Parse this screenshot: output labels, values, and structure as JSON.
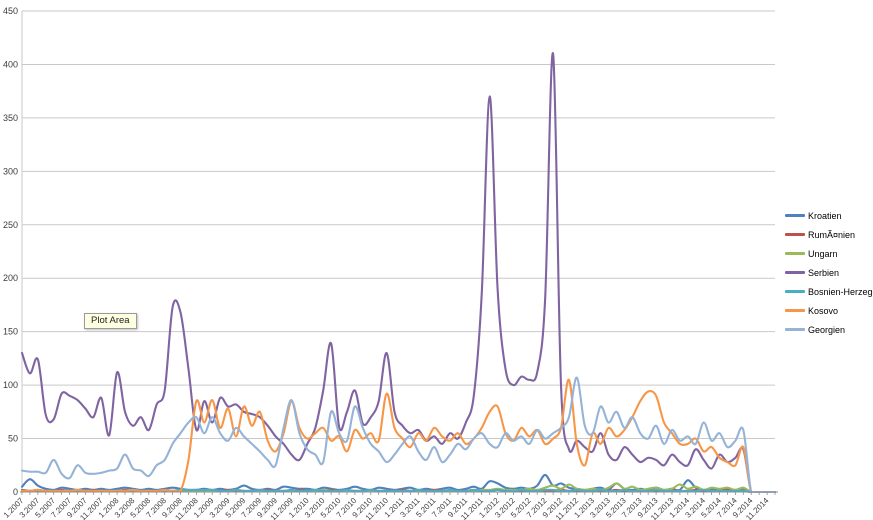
{
  "plot_area_tooltip": "Plot Area",
  "style": {
    "background": "#ffffff",
    "grid_color": "#c9c9c9",
    "axis_color": "#8e8e8e",
    "label_color": "#3c3c3c"
  },
  "chart_data": {
    "type": "line",
    "title": "",
    "xlabel": "",
    "ylabel": "",
    "ylim": [
      0,
      450
    ],
    "grid": true,
    "smooth_lines": true,
    "legend_position": "right",
    "x_unit": "month.year (monthly points 1.2007 - 12.2014, labels every 2 months)",
    "y_ticks": [
      0,
      50,
      100,
      150,
      200,
      250,
      300,
      350,
      400,
      450
    ],
    "x_tick_labels": [
      "1.2007",
      "3.2007",
      "5.2007",
      "7.2007",
      "9.2007",
      "11.2007",
      "1.2008",
      "3.2008",
      "5.2008",
      "7.2008",
      "9.2008",
      "11.2008",
      "1.2009",
      "3.2009",
      "5.2009",
      "7.2009",
      "9.2009",
      "11.2009",
      "1.2010",
      "3.2010",
      "5.2010",
      "7.2010",
      "9.2010",
      "11.2010",
      "1.2011",
      "3.2011",
      "5.2011",
      "7.2011",
      "9.2011",
      "11.2011",
      "1.2012",
      "3.2012",
      "5.2012",
      "7.2012",
      "9.2012",
      "11.2012",
      "1.2013",
      "3.2013",
      "5.2013",
      "7.2013",
      "9.2013",
      "11.2013",
      "1.2014",
      "3.2014",
      "5.2014",
      "7.2014",
      "9.2014",
      "11.2014"
    ],
    "series": [
      {
        "name": "Kroatien",
        "color": "#4F81BD",
        "values": [
          5,
          12,
          6,
          3,
          2,
          4,
          3,
          2,
          3,
          2,
          3,
          2,
          3,
          4,
          3,
          2,
          3,
          2,
          3,
          4,
          3,
          2,
          2,
          3,
          2,
          3,
          2,
          3,
          6,
          3,
          2,
          3,
          2,
          5,
          4,
          3,
          3,
          2,
          4,
          3,
          2,
          3,
          5,
          3,
          2,
          4,
          3,
          2,
          3,
          4,
          2,
          3,
          2,
          3,
          4,
          2,
          3,
          5,
          3,
          10,
          8,
          4,
          3,
          4,
          3,
          6,
          16,
          6,
          8,
          4,
          3,
          2,
          3,
          4,
          2,
          8,
          3,
          2,
          3,
          2,
          4,
          2,
          3,
          2,
          11,
          4,
          2,
          3,
          2,
          3,
          2,
          3,
          0,
          0,
          0,
          0
        ]
      },
      {
        "name": "RumÃ¤nien",
        "color": "#C0504D",
        "values": [
          2,
          1,
          2,
          1,
          1,
          2,
          1,
          1,
          1,
          2,
          1,
          1,
          1,
          2,
          1,
          1,
          1,
          1,
          2,
          1,
          1,
          1,
          2,
          1,
          1,
          1,
          2,
          1,
          1,
          1,
          1,
          2,
          1,
          1,
          1,
          2,
          1,
          1,
          1,
          2,
          1,
          1,
          1,
          1,
          2,
          1,
          1,
          1,
          2,
          1,
          1,
          1,
          2,
          1,
          1,
          1,
          1,
          2,
          1,
          1,
          2,
          1,
          2,
          1,
          1,
          2,
          1,
          1,
          2,
          1,
          1,
          1,
          2,
          1,
          1,
          2,
          1,
          1,
          1,
          2,
          1,
          1,
          2,
          1,
          1,
          2,
          1,
          1,
          1,
          2,
          1,
          1,
          0,
          0,
          0,
          0
        ]
      },
      {
        "name": "Ungarn",
        "color": "#9BBB59",
        "values": [
          1,
          1,
          1,
          1,
          1,
          1,
          1,
          1,
          1,
          1,
          1,
          1,
          1,
          1,
          1,
          1,
          1,
          1,
          1,
          1,
          1,
          1,
          1,
          1,
          1,
          1,
          1,
          2,
          1,
          1,
          1,
          1,
          1,
          1,
          1,
          1,
          1,
          1,
          2,
          1,
          1,
          1,
          1,
          1,
          1,
          1,
          1,
          1,
          1,
          1,
          1,
          1,
          1,
          1,
          1,
          1,
          1,
          1,
          2,
          2,
          3,
          2,
          2,
          2,
          3,
          2,
          4,
          6,
          3,
          7,
          3,
          2,
          3,
          2,
          4,
          8,
          3,
          5,
          2,
          3,
          4,
          2,
          3,
          7,
          3,
          5,
          2,
          4,
          3,
          4,
          2,
          4,
          0,
          0,
          0,
          0
        ]
      },
      {
        "name": "Serbien",
        "color": "#8064A2",
        "values": [
          130,
          111,
          124,
          72,
          68,
          92,
          90,
          86,
          78,
          70,
          88,
          53,
          112,
          75,
          62,
          70,
          58,
          82,
          95,
          173,
          168,
          115,
          58,
          85,
          65,
          88,
          80,
          82,
          75,
          73,
          70,
          62,
          52,
          45,
          35,
          30,
          45,
          60,
          95,
          139,
          61,
          75,
          95,
          64,
          70,
          85,
          130,
          75,
          62,
          55,
          58,
          48,
          52,
          45,
          55,
          50,
          65,
          90,
          185,
          370,
          190,
          115,
          100,
          108,
          105,
          112,
          180,
          410,
          100,
          40,
          48,
          42,
          38,
          55,
          35,
          30,
          42,
          35,
          28,
          32,
          30,
          25,
          35,
          28,
          25,
          40,
          30,
          22,
          35,
          28,
          32,
          40,
          0,
          0,
          0,
          0
        ]
      },
      {
        "name": "Bosnien-Herzegowina",
        "color": "#4BACC6",
        "values": [
          1,
          1,
          1,
          1,
          1,
          1,
          1,
          1,
          1,
          1,
          1,
          1,
          1,
          1,
          1,
          1,
          1,
          1,
          1,
          1,
          2,
          2,
          2,
          2,
          2,
          1,
          1,
          2,
          1,
          1,
          2,
          1,
          1,
          1,
          2,
          1,
          1,
          2,
          1,
          1,
          1,
          2,
          1,
          1,
          2,
          1,
          1,
          1,
          1,
          1,
          2,
          1,
          1,
          1,
          2,
          1,
          1,
          2,
          1,
          1,
          2,
          1,
          1,
          2,
          1,
          1,
          2,
          2,
          1,
          1,
          2,
          1,
          1,
          2,
          1,
          1,
          2,
          1,
          1,
          1,
          2,
          1,
          1,
          1,
          1,
          1,
          2,
          1,
          1,
          1,
          1,
          1,
          0,
          0,
          0,
          0
        ]
      },
      {
        "name": "Kosovo",
        "color": "#F79646",
        "values": [
          1,
          1,
          2,
          1,
          1,
          1,
          1,
          2,
          1,
          1,
          1,
          1,
          1,
          1,
          2,
          1,
          1,
          1,
          2,
          1,
          1,
          30,
          85,
          65,
          86,
          60,
          78,
          52,
          80,
          62,
          75,
          48,
          38,
          55,
          85,
          60,
          50,
          55,
          60,
          48,
          52,
          38,
          58,
          50,
          55,
          48,
          92,
          60,
          50,
          42,
          55,
          48,
          60,
          52,
          48,
          55,
          45,
          50,
          60,
          75,
          80,
          55,
          48,
          60,
          52,
          58,
          45,
          50,
          60,
          105,
          45,
          25,
          55,
          45,
          60,
          52,
          58,
          70,
          85,
          94,
          90,
          65,
          55,
          45,
          45,
          50,
          38,
          42,
          32,
          28,
          25,
          42,
          0,
          0,
          0,
          0
        ]
      },
      {
        "name": "Georgien",
        "color": "#95B3D7",
        "values": [
          20,
          19,
          19,
          18,
          30,
          17,
          13,
          25,
          18,
          17,
          18,
          20,
          22,
          35,
          22,
          20,
          15,
          25,
          30,
          45,
          55,
          65,
          70,
          55,
          70,
          55,
          48,
          60,
          52,
          45,
          38,
          30,
          25,
          60,
          86,
          55,
          40,
          35,
          28,
          75,
          55,
          48,
          80,
          60,
          45,
          38,
          28,
          35,
          45,
          52,
          38,
          30,
          42,
          28,
          35,
          45,
          40,
          50,
          55,
          45,
          42,
          55,
          48,
          52,
          45,
          58,
          50,
          55,
          60,
          70,
          107,
          62,
          55,
          80,
          65,
          75,
          60,
          70,
          55,
          50,
          62,
          45,
          58,
          48,
          52,
          45,
          65,
          48,
          55,
          42,
          48,
          58,
          0,
          0,
          0,
          0
        ]
      }
    ]
  }
}
